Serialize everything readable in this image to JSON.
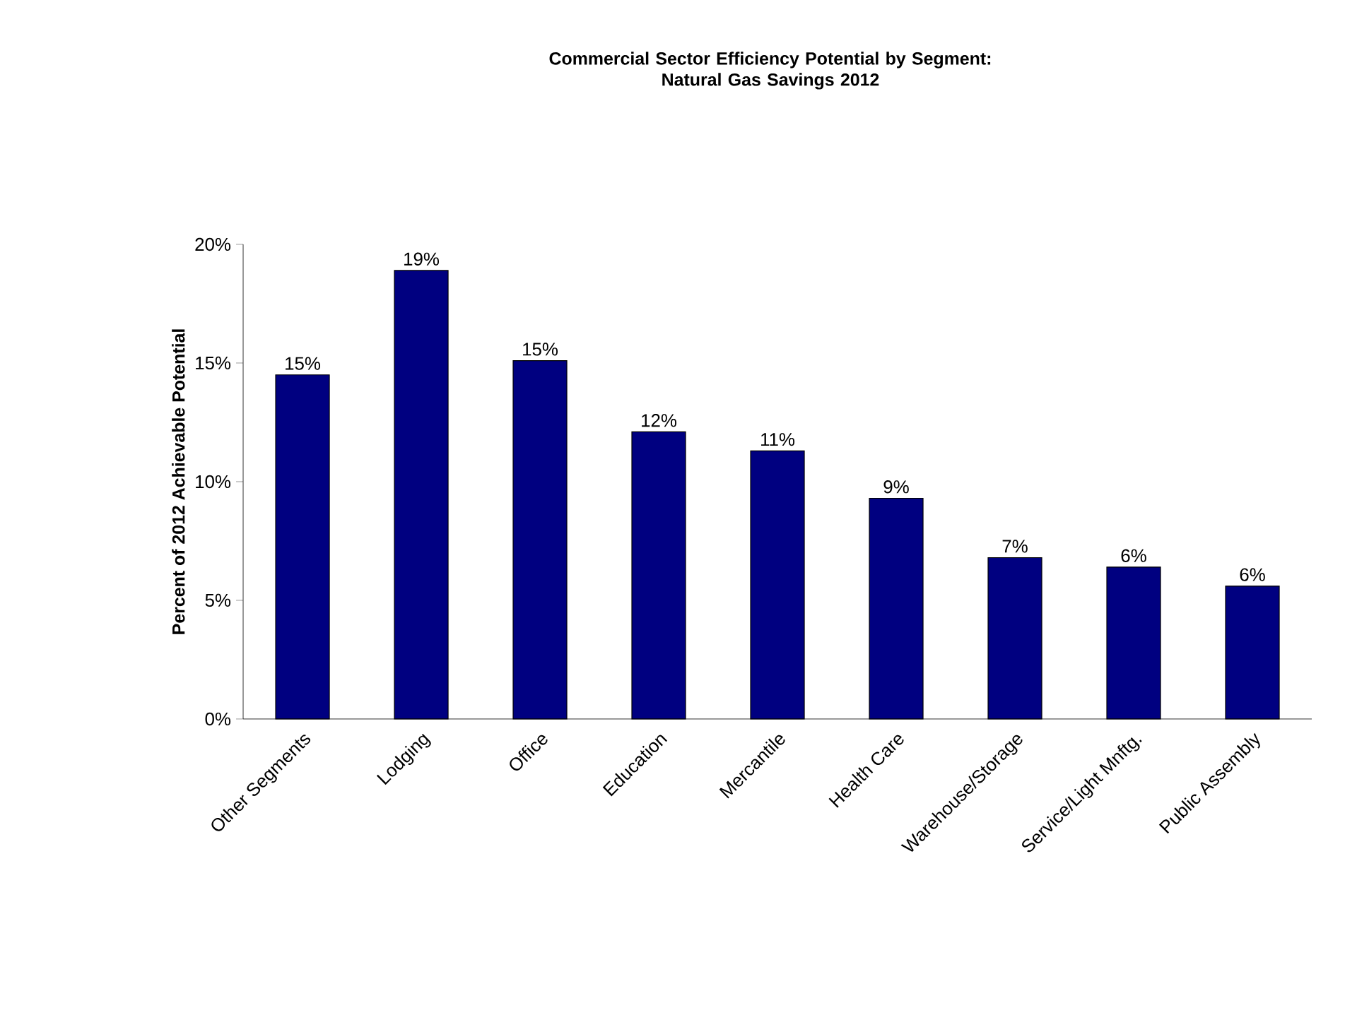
{
  "chart_data": {
    "type": "bar",
    "title": "Commercial Sector Efficiency Potential by Segment:\nNatural Gas Savings 2012",
    "ylabel": "Percent of 2012 Achievable Potential",
    "categories": [
      "Other Segments",
      "Lodging",
      "Office",
      "Education",
      "Mercantile",
      "Health Care",
      "Warehouse/Storage",
      "Service/Light Mnftg.",
      "Public Assembly"
    ],
    "values": [
      14.5,
      18.9,
      15.1,
      12.1,
      11.3,
      9.3,
      6.8,
      6.4,
      5.6
    ],
    "value_labels": [
      "15%",
      "19%",
      "15%",
      "12%",
      "11%",
      "9%",
      "7%",
      "6%",
      "6%"
    ],
    "color": "#000080",
    "ylim": [
      0,
      20
    ],
    "yticks": [
      {
        "value": 0,
        "label": "0%"
      },
      {
        "value": 5,
        "label": "5%"
      },
      {
        "value": 10,
        "label": "10%"
      },
      {
        "value": 15,
        "label": "15%"
      },
      {
        "value": 20,
        "label": "20%"
      }
    ],
    "grid": false
  }
}
